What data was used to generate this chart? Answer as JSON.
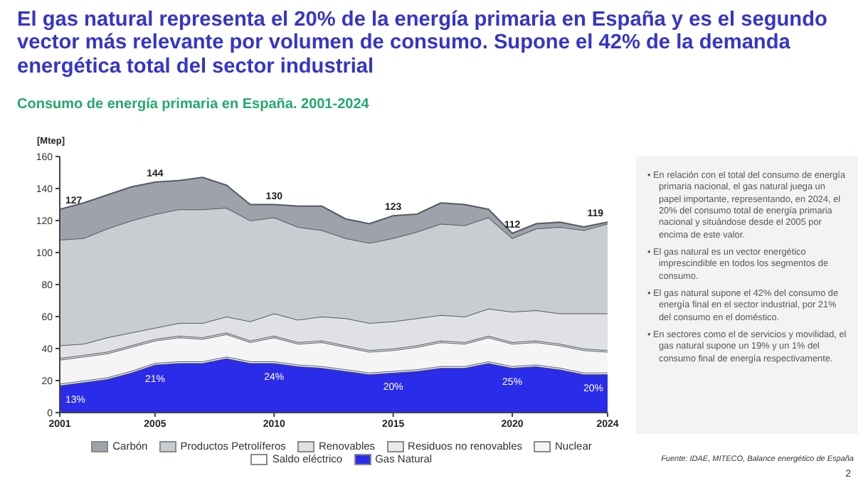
{
  "chart_data": {
    "type": "area",
    "stacked": true,
    "title": "El gas natural representa el 20% de la energía primaria en España y es el segundo vector más relevante por volumen de consumo. Supone el 42% de la demanda energética total del sector industrial",
    "subtitle": "Consumo de energía primaria en España. 2001-2024",
    "ylabel": "[Mtep]",
    "x": [
      2001,
      2002,
      2003,
      2004,
      2005,
      2006,
      2007,
      2008,
      2009,
      2010,
      2011,
      2012,
      2013,
      2014,
      2015,
      2016,
      2017,
      2018,
      2019,
      2020,
      2021,
      2022,
      2023,
      2024
    ],
    "series": [
      {
        "name": "Gas Natural",
        "color": "#2b2bea",
        "values": [
          17,
          19,
          21,
          25,
          30,
          31,
          31,
          34,
          31,
          31,
          29,
          28,
          26,
          24,
          25,
          26,
          28,
          28,
          31,
          28,
          29,
          27,
          24,
          24
        ]
      },
      {
        "name": "Saldo eléctrico",
        "color": "#ffffff",
        "values": [
          1,
          1,
          1,
          1,
          1,
          1,
          1,
          1,
          1,
          1,
          1,
          1,
          1,
          1,
          1,
          1,
          1,
          1,
          1,
          1,
          1,
          1,
          1,
          1
        ]
      },
      {
        "name": "Nuclear",
        "color": "#f5f5f6",
        "values": [
          15,
          15,
          15,
          15,
          14,
          15,
          14,
          14,
          12,
          15,
          13,
          15,
          14,
          13,
          13,
          14,
          15,
          14,
          15,
          14,
          14,
          14,
          14,
          13
        ]
      },
      {
        "name": "Residuos no renovables",
        "color": "#e9eaec",
        "values": [
          1,
          1,
          1,
          1,
          1,
          1,
          1,
          1,
          1,
          1,
          1,
          1,
          1,
          1,
          1,
          1,
          1,
          1,
          1,
          1,
          1,
          1,
          1,
          1
        ]
      },
      {
        "name": "Renovables",
        "color": "#dfe1e4",
        "values": [
          8,
          7,
          9,
          8,
          7,
          8,
          9,
          10,
          12,
          14,
          14,
          15,
          17,
          17,
          17,
          17,
          16,
          16,
          17,
          19,
          19,
          19,
          22,
          23
        ]
      },
      {
        "name": "Productos Petrolíferos",
        "color": "#c9cdd2",
        "values": [
          66,
          66,
          68,
          70,
          71,
          71,
          71,
          68,
          63,
          60,
          58,
          54,
          50,
          50,
          52,
          54,
          57,
          57,
          57,
          46,
          51,
          54,
          52,
          56
        ]
      },
      {
        "name": "Carbón",
        "color": "#9ea3ab",
        "values": [
          19,
          22,
          21,
          21,
          20,
          18,
          20,
          14,
          10,
          8,
          13,
          15,
          12,
          12,
          14,
          11,
          13,
          13,
          5,
          3,
          3,
          3,
          2,
          1
        ]
      }
    ],
    "xlim": [
      2001,
      2024
    ],
    "xticks": [
      2001,
      2005,
      2010,
      2015,
      2020,
      2024
    ],
    "ylim": [
      0,
      160
    ],
    "yticks": [
      0,
      20,
      40,
      60,
      80,
      100,
      120,
      140,
      160
    ],
    "grid": false,
    "legend": "bottom",
    "annotations": [
      {
        "text": "127",
        "x": 2001,
        "y": 127
      },
      {
        "text": "144",
        "x": 2005,
        "y": 144
      },
      {
        "text": "130",
        "x": 2010,
        "y": 130
      },
      {
        "text": "123",
        "x": 2015,
        "y": 123
      },
      {
        "text": "112",
        "x": 2020,
        "y": 112
      },
      {
        "text": "119",
        "x": 2024,
        "y": 119
      },
      {
        "text": "13%",
        "x": 2001,
        "y": 17
      },
      {
        "text": "21%",
        "x": 2005,
        "y": 30
      },
      {
        "text": "24%",
        "x": 2010,
        "y": 31
      },
      {
        "text": "20%",
        "x": 2015,
        "y": 25
      },
      {
        "text": "25%",
        "x": 2020,
        "y": 28
      },
      {
        "text": "20%",
        "x": 2024,
        "y": 24
      },
      "• En relación con el total del consumo de energía primaria nacional, el gas natural juega un papel importante, representando, en 2024, el 20% del consumo total de energía primaria nacional y situándose desde el 2005 por encima de este valor.",
      "• El gas natural es un vector energético imprescindible en todos los segmentos de consumo.",
      "• El gas natural supone el 42% del consumo de energía final en el sector industrial, por 21% del consumo en el doméstico.",
      "• En sectores como el de servicios y movilidad, el gas natural supone un 19% y un 1% del consumo final de energía respectivamente.",
      "Fuente: IDAE, MITECO, Balance energético de España",
      "2"
    ]
  }
}
